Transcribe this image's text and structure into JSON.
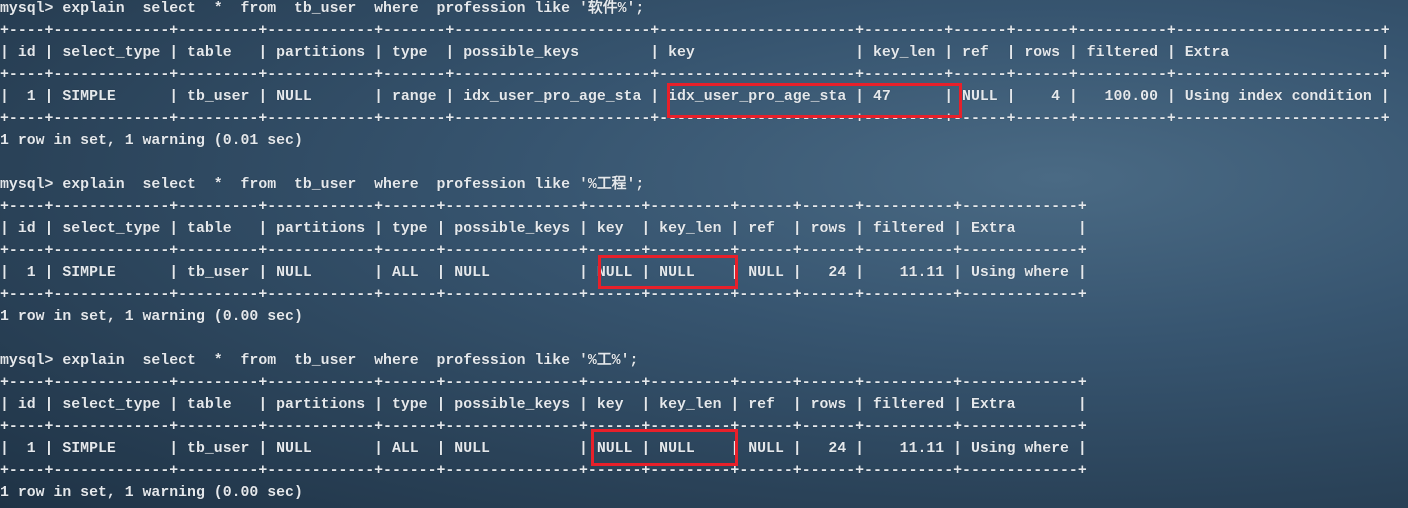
{
  "terminal": {
    "highlight_color": "#e8202a",
    "queries": [
      {
        "command": "mysql> explain  select  *  from  tb_user  where  profession like '软件%';",
        "border": "+----+-------------+---------+------------+-------+----------------------+----------------------+---------+------+------+----------+-----------------------+",
        "header": "| id | select_type | table   | partitions | type  | possible_keys        | key                  | key_len | ref  | rows | filtered | Extra                 |",
        "row": "|  1 | SIMPLE      | tb_user | NULL       | range | idx_user_pro_age_sta | idx_user_pro_age_sta | 47      | NULL |    4 |   100.00 | Using index condition |",
        "result": "1 row in set, 1 warning (0.01 sec)"
      },
      {
        "command": "mysql> explain  select  *  from  tb_user  where  profession like '%工程';",
        "border": "+----+-------------+---------+------------+------+---------------+------+---------+------+------+----------+-------------+",
        "header": "| id | select_type | table   | partitions | type | possible_keys | key  | key_len | ref  | rows | filtered | Extra       |",
        "row": "|  1 | SIMPLE      | tb_user | NULL       | ALL  | NULL          | NULL | NULL    | NULL |   24 |    11.11 | Using where |",
        "result": "1 row in set, 1 warning (0.00 sec)"
      },
      {
        "command": "mysql> explain  select  *  from  tb_user  where  profession like '%工%';",
        "border": "+----+-------------+---------+------------+------+---------------+------+---------+------+------+----------+-------------+",
        "header": "| id | select_type | table   | partitions | type | possible_keys | key  | key_len | ref  | rows | filtered | Extra       |",
        "row": "|  1 | SIMPLE      | tb_user | NULL       | ALL  | NULL          | NULL | NULL    | NULL |   24 |    11.11 | Using where |",
        "result": "1 row in set, 1 warning (0.00 sec)"
      }
    ]
  }
}
